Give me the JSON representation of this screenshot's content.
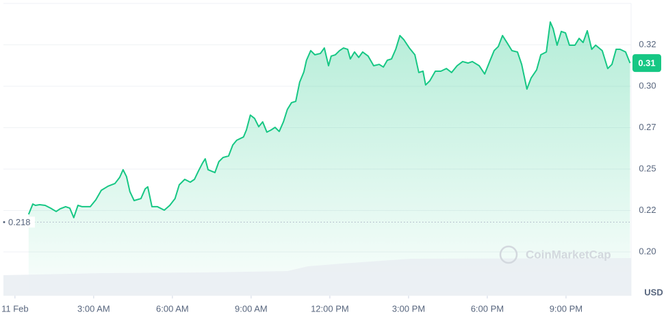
{
  "chart_data": {
    "type": "area",
    "color": "#16c784",
    "currency": "USD",
    "watermark": "CoinMarketCap",
    "reference_value": 0.218,
    "current_price_label": "0.31",
    "grid": true,
    "xlim": [
      -0.44,
      23.48
    ],
    "ylim": [
      0.175,
      0.35
    ],
    "xticks": [
      {
        "value": 0,
        "label": "11 Feb"
      },
      {
        "value": 3,
        "label": "3:00 AM"
      },
      {
        "value": 6,
        "label": "6:00 AM"
      },
      {
        "value": 9,
        "label": "9:00 AM"
      },
      {
        "value": 12,
        "label": "12:00 PM"
      },
      {
        "value": 15,
        "label": "3:00 PM"
      },
      {
        "value": 18,
        "label": "6:00 PM"
      },
      {
        "value": 21,
        "label": "9:00 PM"
      }
    ],
    "yticks": [
      {
        "value": 0.325,
        "label": "0.32"
      },
      {
        "value": 0.3,
        "label": "0.30"
      },
      {
        "value": 0.275,
        "label": "0.27"
      },
      0.25,
      {
        "value": 0.225,
        "label": "0.22"
      },
      {
        "value": 0.2,
        "label": "0.20"
      }
    ],
    "x": [
      0.52,
      0.68,
      0.78,
      0.94,
      1.15,
      1.36,
      1.57,
      1.72,
      1.93,
      2.09,
      2.24,
      2.4,
      2.56,
      2.87,
      3.08,
      3.29,
      3.55,
      3.81,
      3.99,
      4.12,
      4.25,
      4.38,
      4.54,
      4.8,
      4.96,
      5.06,
      5.22,
      5.43,
      5.69,
      5.9,
      6.1,
      6.26,
      6.47,
      6.68,
      6.84,
      6.99,
      7.15,
      7.25,
      7.36,
      7.62,
      7.77,
      7.93,
      8.14,
      8.3,
      8.45,
      8.71,
      8.82,
      8.97,
      9.13,
      9.29,
      9.44,
      9.6,
      9.76,
      9.91,
      10.07,
      10.23,
      10.38,
      10.54,
      10.7,
      10.85,
      11.01,
      11.11,
      11.27,
      11.43,
      11.64,
      11.79,
      11.95,
      12.05,
      12.21,
      12.37,
      12.52,
      12.68,
      12.78,
      12.94,
      13.1,
      13.25,
      13.46,
      13.67,
      13.88,
      14.04,
      14.19,
      14.35,
      14.51,
      14.67,
      14.82,
      15.03,
      15.24,
      15.39,
      15.55,
      15.65,
      15.81,
      16.02,
      16.23,
      16.44,
      16.64,
      16.85,
      17.06,
      17.27,
      17.43,
      17.69,
      17.9,
      18.11,
      18.26,
      18.42,
      18.58,
      18.78,
      18.94,
      19.15,
      19.31,
      19.51,
      19.67,
      19.88,
      20.04,
      20.25,
      20.4,
      20.51,
      20.66,
      20.82,
      20.98,
      21.13,
      21.34,
      21.5,
      21.65,
      21.81,
      21.98,
      22.13,
      22.38,
      22.59,
      22.75,
      22.91,
      23.06,
      23.27,
      23.44
    ],
    "values": [
      0.2227,
      0.2289,
      0.2281,
      0.2285,
      0.2281,
      0.2264,
      0.2244,
      0.226,
      0.2273,
      0.2264,
      0.2207,
      0.2281,
      0.2273,
      0.2273,
      0.2314,
      0.2372,
      0.2397,
      0.2413,
      0.245,
      0.2496,
      0.2455,
      0.2364,
      0.231,
      0.2322,
      0.238,
      0.2393,
      0.2273,
      0.2273,
      0.2252,
      0.2281,
      0.2322,
      0.2405,
      0.2438,
      0.2421,
      0.2438,
      0.2488,
      0.2537,
      0.2562,
      0.2496,
      0.2479,
      0.2545,
      0.257,
      0.2579,
      0.2645,
      0.2674,
      0.2694,
      0.2736,
      0.2826,
      0.2806,
      0.2756,
      0.2785,
      0.2723,
      0.2736,
      0.2752,
      0.2727,
      0.2785,
      0.286,
      0.2901,
      0.2909,
      0.3025,
      0.3087,
      0.3157,
      0.3215,
      0.319,
      0.3198,
      0.3231,
      0.3124,
      0.3182,
      0.319,
      0.3215,
      0.3231,
      0.3223,
      0.3165,
      0.3207,
      0.3174,
      0.3207,
      0.3182,
      0.3124,
      0.3132,
      0.3116,
      0.3157,
      0.3165,
      0.3223,
      0.3306,
      0.3281,
      0.3231,
      0.319,
      0.3083,
      0.3091,
      0.3008,
      0.3033,
      0.3091,
      0.3091,
      0.3107,
      0.3083,
      0.3124,
      0.3149,
      0.314,
      0.3149,
      0.3124,
      0.3074,
      0.3157,
      0.3215,
      0.324,
      0.3306,
      0.3256,
      0.3215,
      0.3207,
      0.3132,
      0.2983,
      0.305,
      0.3099,
      0.319,
      0.3207,
      0.3388,
      0.3347,
      0.3248,
      0.3331,
      0.3322,
      0.3248,
      0.3248,
      0.3289,
      0.3264,
      0.3335,
      0.3223,
      0.3248,
      0.3215,
      0.3107,
      0.3132,
      0.3223,
      0.3223,
      0.3207,
      0.314
    ]
  }
}
